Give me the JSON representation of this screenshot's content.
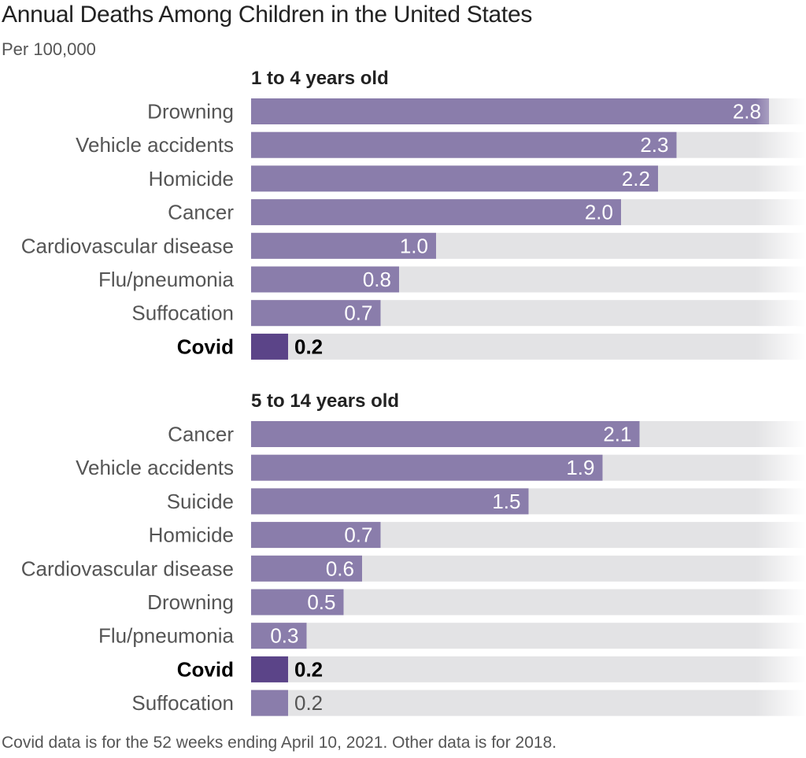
{
  "title": "Annual Deaths Among Children in the United States",
  "subtitle": "Per 100,000",
  "footer": "Covid data is for the 52 weeks ending April 10, 2021. Other data is for 2018.",
  "colors": {
    "bar": "#8a7dab",
    "highlight_bar": "#5b4488",
    "track": "#e3e3e5",
    "value_inside": "#ffffff",
    "value_outside": "#555555"
  },
  "chart_data": [
    {
      "type": "bar",
      "orientation": "horizontal",
      "title": "1 to 4 years old",
      "xlim": [
        0,
        3.1
      ],
      "categories": [
        "Drowning",
        "Vehicle accidents",
        "Homicide",
        "Cancer",
        "Cardiovascular disease",
        "Flu/pneumonia",
        "Suffocation",
        "Covid"
      ],
      "values": [
        2.8,
        2.3,
        2.2,
        2.0,
        1.0,
        0.8,
        0.7,
        0.2
      ],
      "value_labels": [
        "2.8",
        "2.3",
        "2.2",
        "2.0",
        "1.0",
        "0.8",
        "0.7",
        "0.2"
      ],
      "highlight": "Covid"
    },
    {
      "type": "bar",
      "orientation": "horizontal",
      "title": "5 to 14 years old",
      "xlim": [
        0,
        3.1
      ],
      "categories": [
        "Cancer",
        "Vehicle accidents",
        "Suicide",
        "Homicide",
        "Cardiovascular disease",
        "Drowning",
        "Flu/pneumonia",
        "Covid",
        "Suffocation"
      ],
      "values": [
        2.1,
        1.9,
        1.5,
        0.7,
        0.6,
        0.5,
        0.3,
        0.2,
        0.2
      ],
      "value_labels": [
        "2.1",
        "1.9",
        "1.5",
        "0.7",
        "0.6",
        "0.5",
        "0.3",
        "0.2",
        "0.2"
      ],
      "highlight": "Covid"
    }
  ]
}
